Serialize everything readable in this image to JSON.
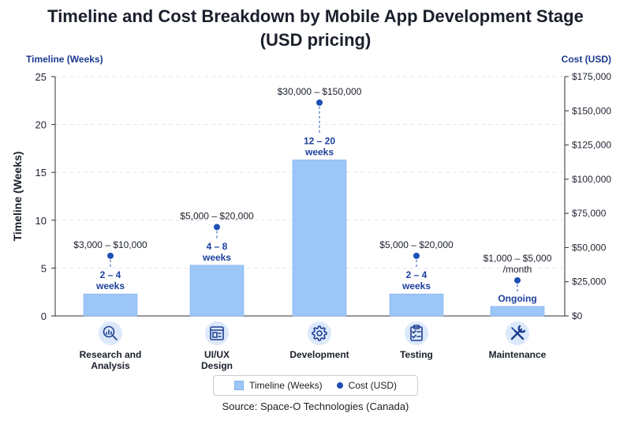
{
  "title_line1": "Timeline and Cost Breakdown by Mobile App Development Stage",
  "title_line2": "(USD pricing)",
  "source": "Source: Space-O Technologies (Canada)",
  "colors": {
    "bar": "#9cc6f7",
    "bar_edge": "#7fb0ee",
    "point": "#1e4fb5",
    "label_blue": "#1b3f9c",
    "axis_title": "#1b3a8f"
  },
  "chart_data": {
    "type": "bar",
    "categories": [
      "Research and Analysis",
      "UI/UX Design",
      "Development",
      "Testing",
      "Maintenance"
    ],
    "category_lines": [
      [
        "Research and",
        "Analysis"
      ],
      [
        "UI/UX",
        "Design"
      ],
      [
        "Development"
      ],
      [
        "Testing"
      ],
      [
        "Maintenance"
      ]
    ],
    "icons": [
      "magnifier-chart-icon",
      "design-layout-icon",
      "gear-icon",
      "clipboard-checklist-icon",
      "wrench-screwdriver-icon"
    ],
    "series": [
      {
        "name": "Timeline (Weeks)",
        "axis": "left",
        "values": [
          2.3,
          5.3,
          16.3,
          2.3,
          1.0
        ],
        "labels": [
          [
            "2 – 4",
            "weeks"
          ],
          [
            "4 – 8",
            "weeks"
          ],
          [
            "12 – 20",
            "weeks"
          ],
          [
            "2 – 4",
            "weeks"
          ],
          [
            "Ongoing"
          ]
        ]
      },
      {
        "name": "Cost (USD)",
        "axis": "right",
        "values": [
          44000,
          65000,
          156000,
          44000,
          26000
        ],
        "labels": [
          [
            "$3,000 – $10,000"
          ],
          [
            "$5,000 – $20,000"
          ],
          [
            "$30,000 – $150,000"
          ],
          [
            "$5,000 – $20,000"
          ],
          [
            "$1,000 – $5,000",
            "/month"
          ]
        ]
      }
    ],
    "y_left": {
      "label": "Timeline (Weeks)",
      "top_label": "Timeline (Weeks)",
      "ylim": [
        0,
        25
      ],
      "ticks": [
        0,
        5,
        10,
        15,
        20,
        25
      ],
      "tick_labels": [
        "0",
        "5",
        "10",
        "15",
        "20",
        "25"
      ]
    },
    "y_right": {
      "top_label": "Cost (USD)",
      "ylim": [
        0,
        175000
      ],
      "ticks": [
        0,
        25000,
        50000,
        75000,
        100000,
        125000,
        150000,
        175000
      ],
      "tick_labels": [
        "$0",
        "$25,000",
        "$50,000",
        "$75,000",
        "$100,000",
        "$125,000",
        "$150,000",
        "$175,000"
      ]
    },
    "grid": true,
    "legend": [
      "Timeline (Weeks)",
      "Cost (USD)"
    ],
    "legend_position": "bottom-center"
  }
}
